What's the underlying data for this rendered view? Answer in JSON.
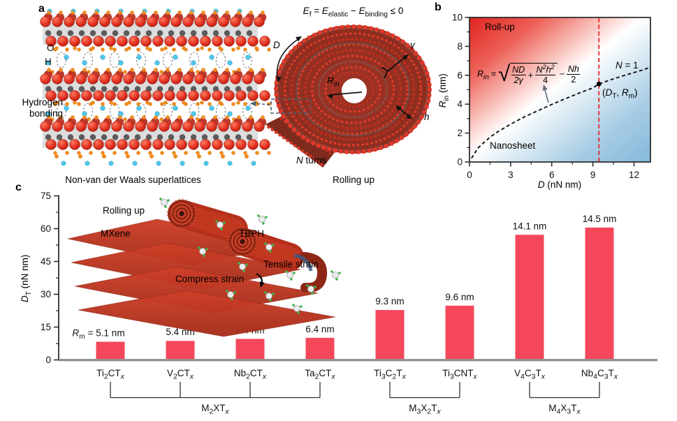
{
  "colors": {
    "bar": "#f4485a",
    "rollup_region": "#e2231f",
    "nanosheet_region": "#85b9da",
    "threshold_line": "#e8252b",
    "scroll_red": "#d8351f",
    "atom_red": "#e02f1f",
    "atom_orange": "#ee8b20",
    "atom_cyan": "#4ec7ea",
    "baseline_gray": "#8f8f8f"
  },
  "figure": {
    "panel_a": {
      "label": "a",
      "atom_o": "O",
      "atom_h": "H",
      "hbond_line1": "Hydrogen",
      "hbond_line2": "bonding",
      "caption": "Non-van der Waals superlattices",
      "equation": {
        "e1": "E",
        "s1": "f",
        "op1": " = ",
        "e2": "E",
        "s2": "elastic",
        "op2": " − ",
        "e3": "E",
        "s3": "binding",
        "tail": " ≤ 0"
      },
      "d_label": "D",
      "gamma_label": "γ",
      "rin_label": "R",
      "rin_sub": "in",
      "h_label": "h",
      "n_turns_n": "N",
      "n_turns_rest": " turns",
      "caption_roll": "Rolling up"
    },
    "panel_b": {
      "label": "b",
      "region_rollup": "Roll-up",
      "region_nanosheet": "Nanosheet",
      "curve_n": "N",
      "curve_rest": " = 1",
      "point": {
        "open": "(",
        "d": "D",
        "dsub": "T",
        "comma": ", ",
        "r": "R",
        "rsub": "m",
        "close": ")"
      },
      "xlabel_main": "D",
      "xlabel_unit": " (nN nm)",
      "ylabel_main": "R",
      "ylabel_sub": "in",
      "ylabel_unit": " (nm)",
      "formula_parts": {
        "lhs": "R",
        "lhs_sub": "in",
        "eq": "=",
        "radical": "√",
        "f1_num": "ND",
        "f1_den": "2γ",
        "plus": "+",
        "n": "N",
        "sup2a": "2",
        "h": "h",
        "sup2b": "2",
        "f2_den": "4",
        "minus": "−",
        "f3_num": "Nh",
        "f3_den": "2"
      }
    },
    "panel_c": {
      "label": "c",
      "ylabel_main": "D",
      "ylabel_sub": "T",
      "ylabel_unit": " (nN nm)",
      "inset": {
        "rolling_up": "Rolling up",
        "mxene": "MXene",
        "tbph": "TBPH",
        "tensile": "Tensile strain",
        "compress": "Compress strain"
      }
    }
  },
  "chart_data": [
    {
      "id": "panel-b-phase-diagram",
      "type": "line",
      "title": "",
      "xlabel": "D (nN nm)",
      "ylabel": "R_in (nm)",
      "xlim": [
        0,
        13.2
      ],
      "ylim": [
        0,
        10
      ],
      "x_ticks": [
        0,
        3,
        6,
        9,
        12
      ],
      "x_minor_ticks": [
        1.5,
        4.5,
        7.5,
        10.5
      ],
      "y_ticks": [
        0,
        2,
        4,
        6,
        8,
        10
      ],
      "y_minor_ticks": [
        1,
        3,
        5,
        7,
        9
      ],
      "grid": false,
      "legend": "none",
      "regions": [
        {
          "label": "Roll-up",
          "area": "above curve",
          "color": "#e2231f"
        },
        {
          "label": "Nanosheet",
          "area": "below curve",
          "color": "#85b9da"
        }
      ],
      "series": [
        {
          "name": "N = 1",
          "style": "dashed",
          "color": "#111111",
          "points": [
            [
              0.15,
              0.25
            ],
            [
              0.6,
              0.95
            ],
            [
              1,
              1.3
            ],
            [
              1.5,
              1.72
            ],
            [
              2,
              2.05
            ],
            [
              3,
              2.62
            ],
            [
              4,
              3.12
            ],
            [
              5,
              3.55
            ],
            [
              6,
              3.98
            ],
            [
              7,
              4.38
            ],
            [
              8,
              4.77
            ],
            [
              9,
              5.12
            ],
            [
              9.44,
              5.4
            ],
            [
              10.5,
              5.75
            ],
            [
              11.5,
              6.05
            ],
            [
              12.5,
              6.33
            ],
            [
              13.2,
              6.55
            ]
          ]
        }
      ],
      "vline": {
        "x": 9.44,
        "color": "#e8252b",
        "style": "dashed"
      },
      "marker": {
        "x": 9.44,
        "y": 5.4,
        "label": "(D_T, R_m)",
        "color": "#000000"
      },
      "formula": "R_in = sqrt(ND/(2γ) + N²h²/4) − Nh/2"
    },
    {
      "id": "panel-c-bars",
      "type": "bar",
      "categories": [
        "Ti2CTx",
        "V2CTx",
        "Nb2CTx",
        "Ta2CTx",
        "Ti3C2Tx",
        "Ti3CNTx",
        "V4C3Tx",
        "Nb4C3Tx"
      ],
      "values": [
        8.3,
        8.7,
        9.6,
        10.1,
        22.8,
        24.8,
        57.2,
        60.5
      ],
      "bar_labels": [
        "Rm = 5.1 nm",
        "5.4 nm",
        "5.4 nm",
        "6.4 nm",
        "9.3 nm",
        "9.6 nm",
        "14.1 nm",
        "14.5 nm"
      ],
      "ylabel": "D_T (nN nm)",
      "ylim": [
        0,
        75
      ],
      "y_ticks": [
        0,
        15,
        30,
        45,
        60,
        75
      ],
      "y_minor_ticks": [
        7.5,
        22.5,
        37.5,
        52.5,
        67.5
      ],
      "bar_color": "#f4485a",
      "grid": false,
      "groups": [
        {
          "label": "M2XTx",
          "from": 0,
          "to": 3
        },
        {
          "label": "M3X2Tx",
          "from": 4,
          "to": 5
        },
        {
          "label": "M4X3Tx",
          "from": 6,
          "to": 7
        }
      ]
    }
  ]
}
